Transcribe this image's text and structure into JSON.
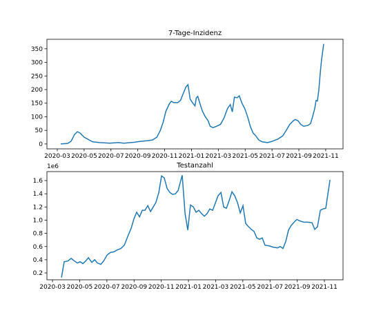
{
  "chart_data": [
    {
      "type": "line",
      "title": "7-Tage-Inzidenz",
      "xlim": [
        1.23,
        23.29
      ],
      "ylim": [
        -18,
        385
      ],
      "xticks": [
        {
          "value": 2,
          "label": "2020-03"
        },
        {
          "value": 4,
          "label": "2020-05"
        },
        {
          "value": 6,
          "label": "2020-07"
        },
        {
          "value": 8,
          "label": "2020-09"
        },
        {
          "value": 10,
          "label": "2020-11"
        },
        {
          "value": 12,
          "label": "2021-01"
        },
        {
          "value": 14,
          "label": "2021-03"
        },
        {
          "value": 16,
          "label": "2021-05"
        },
        {
          "value": 18,
          "label": "2021-07"
        },
        {
          "value": 20,
          "label": "2021-09"
        },
        {
          "value": 22,
          "label": "2021-11"
        }
      ],
      "yticks": [
        0,
        50,
        100,
        150,
        200,
        250,
        300,
        350
      ],
      "color": "#1f77b4",
      "x": [
        2.26,
        2.77,
        3.03,
        3.29,
        3.5,
        3.7,
        4.0,
        4.37,
        4.63,
        5.14,
        5.92,
        6.54,
        6.95,
        7.72,
        8.24,
        8.75,
        9.11,
        9.42,
        9.68,
        9.89,
        10.09,
        10.35,
        10.5,
        10.66,
        10.97,
        11.18,
        11.38,
        11.59,
        11.74,
        11.9,
        12.1,
        12.26,
        12.36,
        12.47,
        12.62,
        12.82,
        13.03,
        13.24,
        13.39,
        13.6,
        13.86,
        14.16,
        14.42,
        14.68,
        14.89,
        15.04,
        15.2,
        15.4,
        15.56,
        15.76,
        15.97,
        16.18,
        16.38,
        16.59,
        16.79,
        17.0,
        17.26,
        17.67,
        18.03,
        18.44,
        18.8,
        19.06,
        19.32,
        19.58,
        19.73,
        19.94,
        20.14,
        20.35,
        20.66,
        20.87,
        21.02,
        21.18,
        21.28,
        21.38,
        21.49,
        21.59,
        21.69,
        21.85
      ],
      "values": [
        0,
        2,
        10,
        35,
        45,
        40,
        25,
        15,
        8,
        5,
        3,
        5,
        3,
        6,
        10,
        12,
        15,
        25,
        50,
        80,
        120,
        148,
        157,
        152,
        152,
        160,
        185,
        210,
        218,
        165,
        150,
        140,
        170,
        175,
        150,
        120,
        100,
        85,
        65,
        60,
        65,
        72,
        95,
        130,
        145,
        118,
        172,
        170,
        177,
        150,
        130,
        100,
        65,
        40,
        30,
        15,
        8,
        5,
        10,
        18,
        30,
        50,
        72,
        85,
        90,
        85,
        72,
        65,
        68,
        75,
        100,
        130,
        160,
        158,
        200,
        260,
        310,
        368
      ]
    },
    {
      "type": "line",
      "title": "Testanzahl",
      "offset_label": "1e6",
      "xlim": [
        1.59,
        23.37
      ],
      "ylim": [
        0.096,
        1.736
      ],
      "xticks": [
        {
          "value": 2,
          "label": "2020-03"
        },
        {
          "value": 4,
          "label": "2020-05"
        },
        {
          "value": 6,
          "label": "2020-07"
        },
        {
          "value": 8,
          "label": "2020-09"
        },
        {
          "value": 10,
          "label": "2020-11"
        },
        {
          "value": 12,
          "label": "2021-01"
        },
        {
          "value": 14,
          "label": "2021-03"
        },
        {
          "value": 16,
          "label": "2021-05"
        },
        {
          "value": 18,
          "label": "2021-07"
        },
        {
          "value": 20,
          "label": "2021-09"
        },
        {
          "value": 22,
          "label": "2021-11"
        }
      ],
      "yticks": [
        0.2,
        0.4,
        0.6,
        0.8,
        {
          "value": 1.0,
          "label": "1.0"
        },
        1.2,
        1.4,
        1.6
      ],
      "color": "#1f77b4",
      "x": [
        2.66,
        2.86,
        3.12,
        3.37,
        3.62,
        3.83,
        4.03,
        4.23,
        4.44,
        4.64,
        4.89,
        5.1,
        5.3,
        5.55,
        5.76,
        6.01,
        6.26,
        6.52,
        6.77,
        7.03,
        7.28,
        7.53,
        7.79,
        7.99,
        8.19,
        8.4,
        8.6,
        8.8,
        9.01,
        9.21,
        9.41,
        9.61,
        9.82,
        10.02,
        10.22,
        10.43,
        10.63,
        10.83,
        11.04,
        11.24,
        11.54,
        11.75,
        11.95,
        12.15,
        12.36,
        12.56,
        12.76,
        12.96,
        13.17,
        13.37,
        13.57,
        13.78,
        13.98,
        14.18,
        14.39,
        14.59,
        14.79,
        15.0,
        15.2,
        15.4,
        15.6,
        15.81,
        16.01,
        16.21,
        16.42,
        16.62,
        16.82,
        17.03,
        17.23,
        17.43,
        17.63,
        17.94,
        18.24,
        18.55,
        18.75,
        18.95,
        19.16,
        19.36,
        19.56,
        19.77,
        19.97,
        20.17,
        20.48,
        20.78,
        21.09,
        21.29,
        21.49,
        21.7,
        21.9,
        22.1,
        22.41
      ],
      "values": [
        0.13,
        0.37,
        0.38,
        0.42,
        0.38,
        0.35,
        0.37,
        0.34,
        0.38,
        0.43,
        0.36,
        0.4,
        0.35,
        0.33,
        0.38,
        0.47,
        0.51,
        0.52,
        0.55,
        0.57,
        0.62,
        0.75,
        0.88,
        1.02,
        1.12,
        1.05,
        1.15,
        1.15,
        1.22,
        1.13,
        1.2,
        1.27,
        1.42,
        1.67,
        1.64,
        1.48,
        1.42,
        1.39,
        1.4,
        1.45,
        1.68,
        1.1,
        0.85,
        1.23,
        1.2,
        1.12,
        1.15,
        1.1,
        1.06,
        1.1,
        1.17,
        1.15,
        1.26,
        1.37,
        1.42,
        1.2,
        1.18,
        1.3,
        1.43,
        1.37,
        1.27,
        1.11,
        1.22,
        0.95,
        0.9,
        0.86,
        0.83,
        0.73,
        0.71,
        0.73,
        0.62,
        0.61,
        0.59,
        0.58,
        0.6,
        0.57,
        0.68,
        0.85,
        0.92,
        0.97,
        1.01,
        0.99,
        0.97,
        0.97,
        0.96,
        0.86,
        0.9,
        1.15,
        1.17,
        1.18,
        1.61
      ]
    }
  ]
}
